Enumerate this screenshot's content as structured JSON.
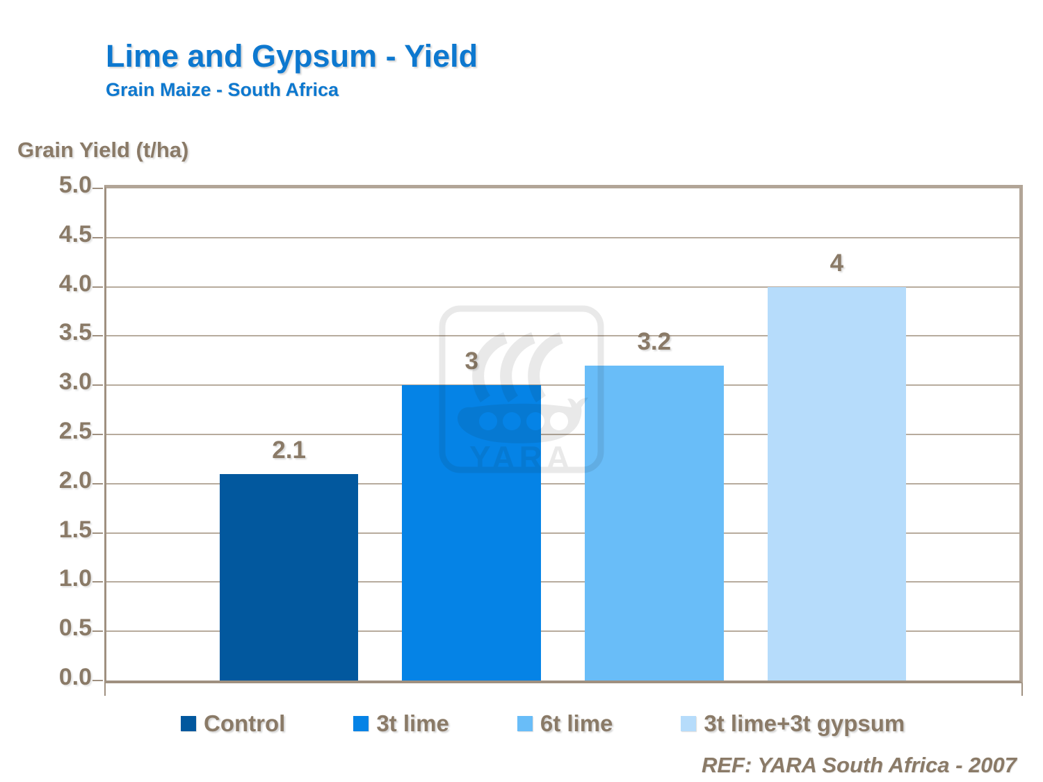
{
  "slide": {
    "title": "Lime and Gypsum - Yield",
    "subtitle": "Grain Maize - South Africa",
    "reference": "REF: YARA South Africa - 2007",
    "watermark_text": "YARA"
  },
  "colors": {
    "title_blue": "#0D78CF",
    "label_brown": "#8A7A67",
    "frame_tan": "#B2A597",
    "axis_line": "#9F9080",
    "gridline": "#B7AB9D"
  },
  "chart_data": {
    "type": "bar",
    "title": "Lime and Gypsum - Yield",
    "subtitle": "Grain Maize - South Africa",
    "xlabel": "",
    "ylabel": "Grain Yield (t/ha)",
    "categories": [
      "Control",
      "3t lime",
      "6t lime",
      "3t lime+3t gypsum"
    ],
    "values": [
      2.1,
      3,
      3.2,
      4
    ],
    "value_labels": [
      "2.1",
      "3",
      "3.2",
      "4"
    ],
    "bar_colors": [
      "#02589E",
      "#0583E6",
      "#69BDF8",
      "#B6DCFB"
    ],
    "ylim": [
      0,
      5
    ],
    "ytick_step": 0.5,
    "grid": true,
    "legend_position": "bottom",
    "reference": "REF: YARA South Africa - 2007"
  }
}
